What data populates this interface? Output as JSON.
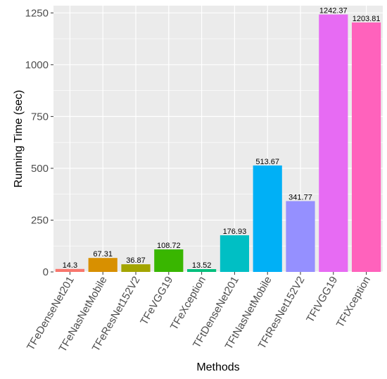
{
  "chart_data": {
    "type": "bar",
    "xlabel": "Methods",
    "ylabel": "Running Time (sec)",
    "ylim": [
      0,
      1285
    ],
    "yticks": [
      0,
      250,
      500,
      750,
      1000,
      1250
    ],
    "ytick_labels": [
      "0",
      "250",
      "500",
      "750",
      "1000",
      "1250"
    ],
    "grid": true,
    "legend": "none",
    "categories": [
      "TFeDenseNet201",
      "TFeNasNetMobile",
      "TFeResNet152V2",
      "TFeVGG19",
      "TFeXception",
      "TFtDenseNet201",
      "TFtNasNetMobile",
      "TFtResNet152V2",
      "TFtVGG19",
      "TFtXception"
    ],
    "values": [
      14.3,
      67.31,
      36.87,
      108.72,
      13.52,
      176.93,
      513.67,
      341.77,
      1242.37,
      1203.81
    ],
    "value_labels": [
      "14.3",
      "67.31",
      "36.87",
      "108.72",
      "13.52",
      "176.93",
      "513.67",
      "341.77",
      "1242.37",
      "1203.81"
    ],
    "colors": [
      "#F8766D",
      "#D89000",
      "#A3A500",
      "#39B600",
      "#00BF7D",
      "#00BFC4",
      "#00B0F6",
      "#9590FF",
      "#E76BF3",
      "#FF62BC"
    ],
    "panel_color": "#EBEBEB",
    "grid_color": "#FFFFFF"
  }
}
